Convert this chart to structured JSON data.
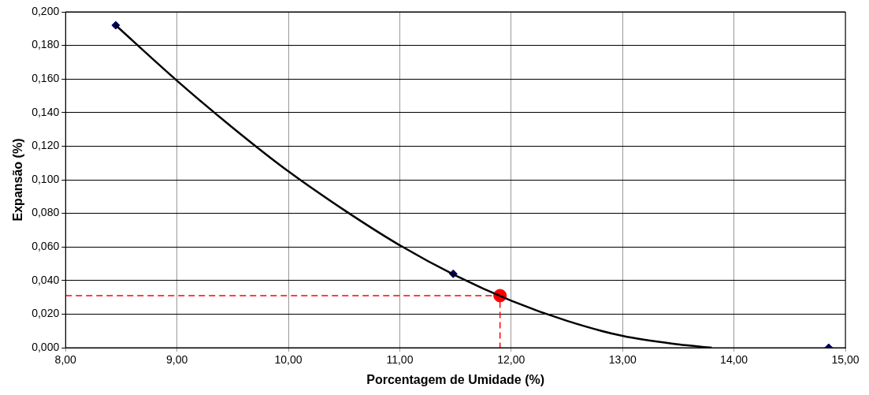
{
  "chart_data": {
    "type": "scatter",
    "xlabel": "Porcentagem de Umidade (%)",
    "ylabel": "Expansão (%)",
    "xlim": [
      8,
      15
    ],
    "ylim": [
      0,
      0.2
    ],
    "xticks": [
      {
        "value": 8,
        "label": "8,00"
      },
      {
        "value": 9,
        "label": "9,00"
      },
      {
        "value": 10,
        "label": "10,00"
      },
      {
        "value": 11,
        "label": "11,00"
      },
      {
        "value": 12,
        "label": "12,00"
      },
      {
        "value": 13,
        "label": "13,00"
      },
      {
        "value": 14,
        "label": "14,00"
      },
      {
        "value": 15,
        "label": "15,00"
      }
    ],
    "yticks": [
      {
        "value": 0,
        "label": "0,000"
      },
      {
        "value": 0.02,
        "label": "0,020"
      },
      {
        "value": 0.04,
        "label": "0,040"
      },
      {
        "value": 0.06,
        "label": "0,060"
      },
      {
        "value": 0.08,
        "label": "0,080"
      },
      {
        "value": 0.1,
        "label": "0,100"
      },
      {
        "value": 0.12,
        "label": "0,120"
      },
      {
        "value": 0.14,
        "label": "0,140"
      },
      {
        "value": 0.16,
        "label": "0,160"
      },
      {
        "value": 0.18,
        "label": "0,180"
      },
      {
        "value": 0.2,
        "label": "0,200"
      }
    ],
    "grid": true,
    "legend": false,
    "series": [
      {
        "type": "line",
        "color": "#000000",
        "marker": "none",
        "line_style": "solid",
        "x": [
          8.45,
          9,
          9.5,
          10,
          10.5,
          11,
          11.5,
          12,
          12.5,
          13,
          13.5,
          13.8
        ],
        "values": [
          0.192,
          0.159,
          0.131,
          0.105,
          0.082,
          0.061,
          0.043,
          0.028,
          0.016,
          0.007,
          0.002,
          0
        ]
      },
      {
        "type": "line",
        "color": "#ff0000",
        "marker": "none",
        "line_style": "dashed",
        "x": [
          8,
          11.9,
          11.9
        ],
        "values": [
          0.031,
          0.031,
          0
        ]
      },
      {
        "type": "scatter",
        "color": "#000066",
        "marker": "diamond",
        "x": [
          8.45,
          11.48,
          14.85
        ],
        "values": [
          0.192,
          0.044,
          0
        ]
      },
      {
        "type": "scatter",
        "color": "#ff0000",
        "marker": "circle",
        "x": [
          11.9
        ],
        "values": [
          0.031
        ]
      }
    ]
  }
}
